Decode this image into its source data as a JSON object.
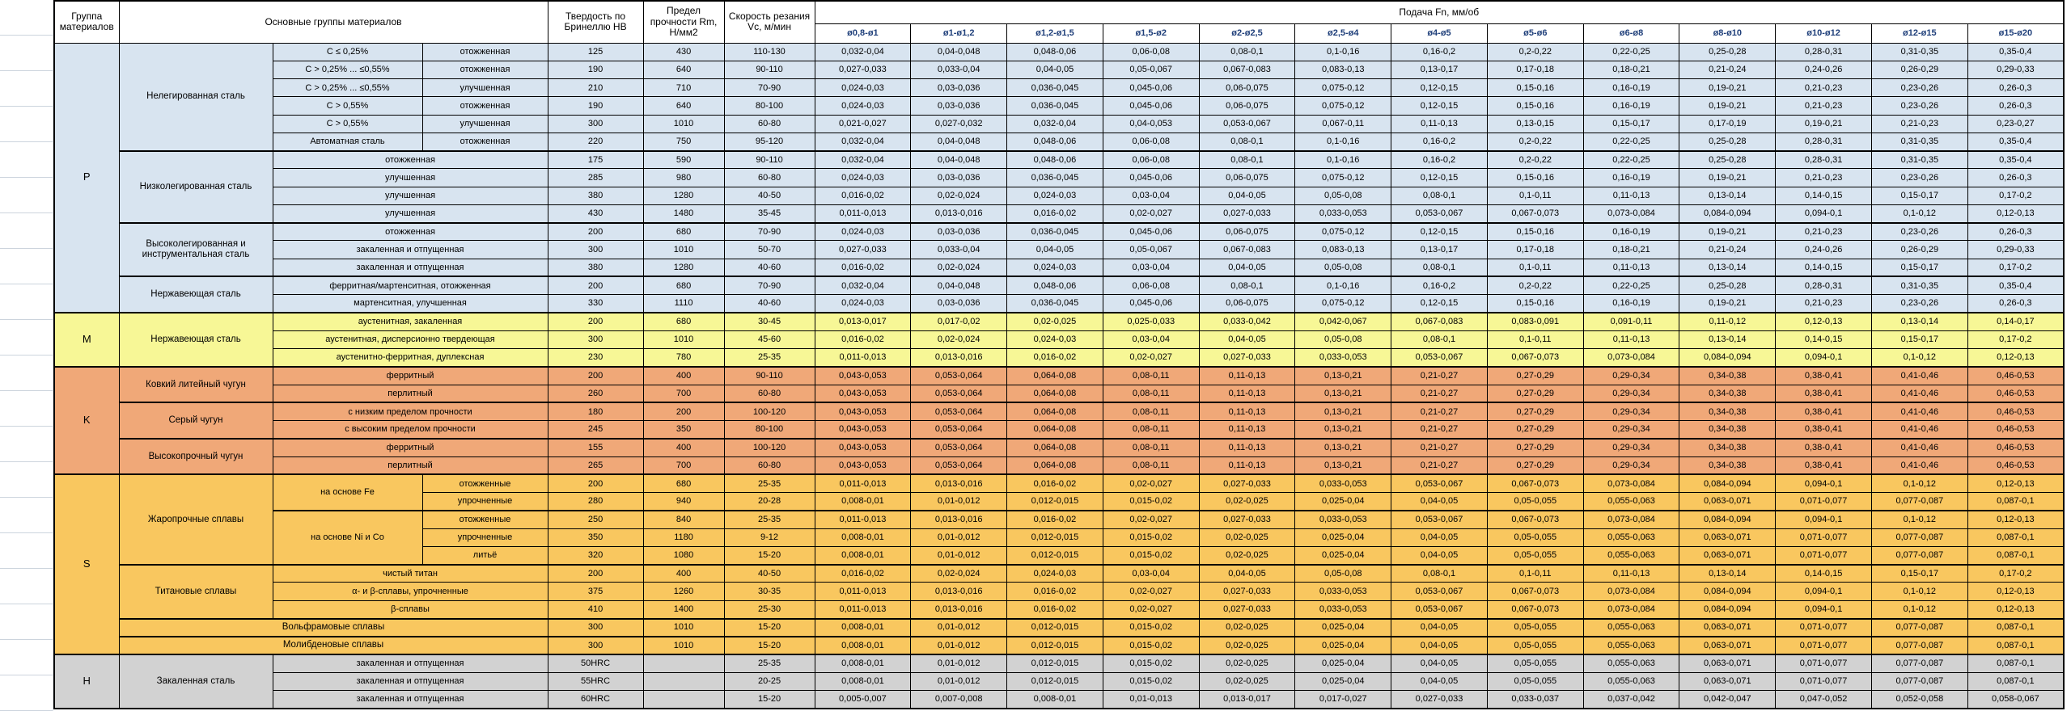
{
  "header": {
    "col_group": "Группа материалов",
    "col_materials": "Основные группы материалов",
    "col_hb": "Твердость по Бринеллю HB",
    "col_rm": "Предел прочности Rm, Н/мм2",
    "col_vc": "Скорость резания Vc, м/мин",
    "col_feed": "Подача Fn, мм/об",
    "diameters": [
      "ø0,8-ø1",
      "ø1-ø1,2",
      "ø1,2-ø1,5",
      "ø1,5-ø2",
      "ø2-ø2,5",
      "ø2,5-ø4",
      "ø4-ø5",
      "ø5-ø6",
      "ø6-ø8",
      "ø8-ø10",
      "ø10-ø12",
      "ø12-ø15",
      "ø15-ø20"
    ]
  },
  "colors": {
    "groups": {
      "P": "#d8e4f0",
      "M": "#f7f796",
      "K": "#f0a878",
      "S": "#f9c75f",
      "H": "#d2d2d2"
    },
    "diameter_header_text": "#1f3f7a",
    "border": "#000000"
  },
  "feed_patterns": {
    "A": [
      "0,032-0,04",
      "0,04-0,048",
      "0,048-0,06",
      "0,06-0,08",
      "0,08-0,1",
      "0,1-0,16",
      "0,16-0,2",
      "0,2-0,22",
      "0,22-0,25",
      "0,25-0,28",
      "0,28-0,31",
      "0,31-0,35",
      "0,35-0,4"
    ],
    "B": [
      "0,027-0,033",
      "0,033-0,04",
      "0,04-0,05",
      "0,05-0,067",
      "0,067-0,083",
      "0,083-0,13",
      "0,13-0,17",
      "0,17-0,18",
      "0,18-0,21",
      "0,21-0,24",
      "0,24-0,26",
      "0,26-0,29",
      "0,29-0,33"
    ],
    "C": [
      "0,024-0,03",
      "0,03-0,036",
      "0,036-0,045",
      "0,045-0,06",
      "0,06-0,075",
      "0,075-0,12",
      "0,12-0,15",
      "0,15-0,16",
      "0,16-0,19",
      "0,19-0,21",
      "0,21-0,23",
      "0,23-0,26",
      "0,26-0,3"
    ],
    "D": [
      "0,021-0,027",
      "0,027-0,032",
      "0,032-0,04",
      "0,04-0,053",
      "0,053-0,067",
      "0,067-0,11",
      "0,11-0,13",
      "0,13-0,15",
      "0,15-0,17",
      "0,17-0,19",
      "0,19-0,21",
      "0,21-0,23",
      "0,23-0,27"
    ],
    "E": [
      "0,016-0,02",
      "0,02-0,024",
      "0,024-0,03",
      "0,03-0,04",
      "0,04-0,05",
      "0,05-0,08",
      "0,08-0,1",
      "0,1-0,11",
      "0,11-0,13",
      "0,13-0,14",
      "0,14-0,15",
      "0,15-0,17",
      "0,17-0,2"
    ],
    "F": [
      "0,011-0,013",
      "0,013-0,016",
      "0,016-0,02",
      "0,02-0,027",
      "0,027-0,033",
      "0,033-0,053",
      "0,053-0,067",
      "0,067-0,073",
      "0,073-0,084",
      "0,084-0,094",
      "0,094-0,1",
      "0,1-0,12",
      "0,12-0,13"
    ],
    "G": [
      "0,013-0,017",
      "0,017-0,02",
      "0,02-0,025",
      "0,025-0,033",
      "0,033-0,042",
      "0,042-0,067",
      "0,067-0,083",
      "0,083-0,091",
      "0,091-0,11",
      "0,11-0,12",
      "0,12-0,13",
      "0,13-0,14",
      "0,14-0,17"
    ],
    "K": [
      "0,043-0,053",
      "0,053-0,064",
      "0,064-0,08",
      "0,08-0,11",
      "0,11-0,13",
      "0,13-0,21",
      "0,21-0,27",
      "0,27-0,29",
      "0,29-0,34",
      "0,34-0,38",
      "0,38-0,41",
      "0,41-0,46",
      "0,46-0,53"
    ],
    "S2": [
      "0,008-0,01",
      "0,01-0,012",
      "0,012-0,015",
      "0,015-0,02",
      "0,02-0,025",
      "0,025-0,04",
      "0,04-0,05",
      "0,05-0,055",
      "0,055-0,063",
      "0,063-0,071",
      "0,071-0,077",
      "0,077-0,087",
      "0,087-0,1"
    ],
    "H3": [
      "0,005-0,007",
      "0,007-0,008",
      "0,008-0,01",
      "0,01-0,013",
      "0,013-0,017",
      "0,017-0,027",
      "0,027-0,033",
      "0,033-0,037",
      "0,037-0,042",
      "0,042-0,047",
      "0,047-0,052",
      "0,052-0,058",
      "0,058-0,067"
    ]
  },
  "rows": [
    {
      "g": "P",
      "feed": "A",
      "hb": "125",
      "rm": "430",
      "vc": "110-130",
      "cells": [
        {
          "t": "P",
          "rs": 15,
          "k": "group"
        },
        {
          "t": "Нелегированная сталь",
          "rs": 6,
          "k": "mat"
        },
        {
          "t": "C ≤ 0,25%",
          "k": "sub"
        },
        {
          "t": "отожженная",
          "k": "state"
        }
      ]
    },
    {
      "g": "P",
      "feed": "B",
      "hb": "190",
      "rm": "640",
      "vc": "90-110",
      "cells": [
        {
          "t": "C > 0,25% ... ≤0,55%",
          "k": "sub"
        },
        {
          "t": "отожженная",
          "k": "state"
        }
      ]
    },
    {
      "g": "P",
      "feed": "C",
      "hb": "210",
      "rm": "710",
      "vc": "70-90",
      "cells": [
        {
          "t": "C > 0,25% ... ≤0,55%",
          "k": "sub"
        },
        {
          "t": "улучшенная",
          "k": "state"
        }
      ]
    },
    {
      "g": "P",
      "feed": "C",
      "hb": "190",
      "rm": "640",
      "vc": "80-100",
      "cells": [
        {
          "t": "C > 0,55%",
          "k": "sub"
        },
        {
          "t": "отожженная",
          "k": "state"
        }
      ]
    },
    {
      "g": "P",
      "feed": "D",
      "hb": "300",
      "rm": "1010",
      "vc": "60-80",
      "cells": [
        {
          "t": "C > 0,55%",
          "k": "sub"
        },
        {
          "t": "улучшенная",
          "k": "state"
        }
      ]
    },
    {
      "g": "P",
      "feed": "A",
      "hb": "220",
      "rm": "750",
      "vc": "95-120",
      "cells": [
        {
          "t": "Автоматная сталь",
          "k": "sub"
        },
        {
          "t": "отожженная",
          "k": "state"
        }
      ]
    },
    {
      "g": "P",
      "feed": "A",
      "thick": true,
      "hb": "175",
      "rm": "590",
      "vc": "90-110",
      "cells": [
        {
          "t": "Низколегированная сталь",
          "rs": 4,
          "k": "mat"
        },
        {
          "t": "отожженная",
          "cs": 2,
          "k": "sub"
        }
      ]
    },
    {
      "g": "P",
      "feed": "C",
      "hb": "285",
      "rm": "980",
      "vc": "60-80",
      "cells": [
        {
          "t": "улучшенная",
          "cs": 2,
          "k": "sub"
        }
      ]
    },
    {
      "g": "P",
      "feed": "E",
      "hb": "380",
      "rm": "1280",
      "vc": "40-50",
      "cells": [
        {
          "t": "улучшенная",
          "cs": 2,
          "k": "sub"
        }
      ]
    },
    {
      "g": "P",
      "feed": "F",
      "hb": "430",
      "rm": "1480",
      "vc": "35-45",
      "cells": [
        {
          "t": "улучшенная",
          "cs": 2,
          "k": "sub"
        }
      ]
    },
    {
      "g": "P",
      "feed": "C",
      "thick": true,
      "hb": "200",
      "rm": "680",
      "vc": "70-90",
      "cells": [
        {
          "t": "Высоколегированная и инструментальная сталь",
          "rs": 3,
          "k": "mat"
        },
        {
          "t": "отожженная",
          "cs": 2,
          "k": "sub"
        }
      ]
    },
    {
      "g": "P",
      "feed": "B",
      "hb": "300",
      "rm": "1010",
      "vc": "50-70",
      "cells": [
        {
          "t": "закаленная и отпущенная",
          "cs": 2,
          "k": "sub"
        }
      ]
    },
    {
      "g": "P",
      "feed": "E",
      "hb": "380",
      "rm": "1280",
      "vc": "40-60",
      "cells": [
        {
          "t": "закаленная и отпущенная",
          "cs": 2,
          "k": "sub"
        }
      ]
    },
    {
      "g": "P",
      "feed": "A",
      "thick": true,
      "hb": "200",
      "rm": "680",
      "vc": "70-90",
      "cells": [
        {
          "t": "Нержавеющая сталь",
          "rs": 2,
          "k": "mat"
        },
        {
          "t": "ферритная/мартенситная, отожженная",
          "cs": 2,
          "k": "sub"
        }
      ]
    },
    {
      "g": "P",
      "feed": "C",
      "hb": "330",
      "rm": "1110",
      "vc": "40-60",
      "cells": [
        {
          "t": "мартенситная, улучшенная",
          "cs": 2,
          "k": "sub"
        }
      ]
    },
    {
      "g": "M",
      "feed": "G",
      "thick": true,
      "hb": "200",
      "rm": "680",
      "vc": "30-45",
      "cells": [
        {
          "t": "M",
          "rs": 3,
          "k": "group"
        },
        {
          "t": "Нержавеющая сталь",
          "rs": 3,
          "k": "mat"
        },
        {
          "t": "аустенитная, закаленная",
          "cs": 2,
          "k": "sub"
        }
      ]
    },
    {
      "g": "M",
      "feed": "E",
      "hb": "300",
      "rm": "1010",
      "vc": "45-60",
      "cells": [
        {
          "t": "аустенитная, дисперсионно твердеющая",
          "cs": 2,
          "k": "sub"
        }
      ]
    },
    {
      "g": "M",
      "feed": "F",
      "hb": "230",
      "rm": "780",
      "vc": "25-35",
      "cells": [
        {
          "t": "аустенитно-ферритная, дуплексная",
          "cs": 2,
          "k": "sub"
        }
      ]
    },
    {
      "g": "K",
      "feed": "K",
      "thick": true,
      "hb": "200",
      "rm": "400",
      "vc": "90-110",
      "cells": [
        {
          "t": "K",
          "rs": 6,
          "k": "group"
        },
        {
          "t": "Ковкий литейный чугун",
          "rs": 2,
          "k": "mat"
        },
        {
          "t": "ферритный",
          "cs": 2,
          "k": "sub"
        }
      ]
    },
    {
      "g": "K",
      "feed": "K",
      "hb": "260",
      "rm": "700",
      "vc": "60-80",
      "cells": [
        {
          "t": "перлитный",
          "cs": 2,
          "k": "sub"
        }
      ]
    },
    {
      "g": "K",
      "feed": "K",
      "thick": true,
      "hb": "180",
      "rm": "200",
      "vc": "100-120",
      "cells": [
        {
          "t": "Серый чугун",
          "rs": 2,
          "k": "mat"
        },
        {
          "t": "с низким пределом прочности",
          "cs": 2,
          "k": "sub"
        }
      ]
    },
    {
      "g": "K",
      "feed": "K",
      "hb": "245",
      "rm": "350",
      "vc": "80-100",
      "cells": [
        {
          "t": "с высоким пределом прочности",
          "cs": 2,
          "k": "sub"
        }
      ]
    },
    {
      "g": "K",
      "feed": "K",
      "thick": true,
      "hb": "155",
      "rm": "400",
      "vc": "100-120",
      "cells": [
        {
          "t": "Высокопрочный чугун",
          "rs": 2,
          "k": "mat"
        },
        {
          "t": "ферритный",
          "cs": 2,
          "k": "sub"
        }
      ]
    },
    {
      "g": "K",
      "feed": "K",
      "hb": "265",
      "rm": "700",
      "vc": "60-80",
      "cells": [
        {
          "t": "перлитный",
          "cs": 2,
          "k": "sub"
        }
      ]
    },
    {
      "g": "S",
      "feed": "F",
      "thick": true,
      "hb": "200",
      "rm": "680",
      "vc": "25-35",
      "cells": [
        {
          "t": "S",
          "rs": 10,
          "k": "group"
        },
        {
          "t": "Жаропрочные сплавы",
          "rs": 5,
          "k": "mat"
        },
        {
          "t": "на основе Fe",
          "rs": 2,
          "k": "sub"
        },
        {
          "t": "отожженные",
          "k": "state"
        }
      ]
    },
    {
      "g": "S",
      "feed": "S2",
      "hb": "280",
      "rm": "940",
      "vc": "20-28",
      "cells": [
        {
          "t": "упрочненные",
          "k": "state"
        }
      ]
    },
    {
      "g": "S",
      "feed": "F",
      "thick": true,
      "hb": "250",
      "rm": "840",
      "vc": "25-35",
      "cells": [
        {
          "t": "на основе Ni и Co",
          "rs": 3,
          "k": "sub"
        },
        {
          "t": "отожженные",
          "k": "state"
        }
      ]
    },
    {
      "g": "S",
      "feed": "S2",
      "hb": "350",
      "rm": "1180",
      "vc": "9-12",
      "cells": [
        {
          "t": "упрочненные",
          "k": "state"
        }
      ]
    },
    {
      "g": "S",
      "feed": "S2",
      "hb": "320",
      "rm": "1080",
      "vc": "15-20",
      "cells": [
        {
          "t": "литьё",
          "k": "state"
        }
      ]
    },
    {
      "g": "S",
      "feed": "E",
      "thick": true,
      "hb": "200",
      "rm": "400",
      "vc": "40-50",
      "cells": [
        {
          "t": "Титановые сплавы",
          "rs": 3,
          "k": "mat"
        },
        {
          "t": "чистый титан",
          "cs": 2,
          "k": "sub"
        }
      ]
    },
    {
      "g": "S",
      "feed": "F",
      "hb": "375",
      "rm": "1260",
      "vc": "30-35",
      "cells": [
        {
          "t": "α- и β-сплавы, упрочненные",
          "cs": 2,
          "k": "sub"
        }
      ]
    },
    {
      "g": "S",
      "feed": "F",
      "hb": "410",
      "rm": "1400",
      "vc": "25-30",
      "cells": [
        {
          "t": "β-сплавы",
          "cs": 2,
          "k": "sub"
        }
      ]
    },
    {
      "g": "S",
      "feed": "S2",
      "thick": true,
      "hb": "300",
      "rm": "1010",
      "vc": "15-20",
      "cells": [
        {
          "t": "Вольфрамовые сплавы",
          "cs": 3,
          "k": "mat"
        }
      ]
    },
    {
      "g": "S",
      "feed": "S2",
      "thick": true,
      "hb": "300",
      "rm": "1010",
      "vc": "15-20",
      "cells": [
        {
          "t": "Молибденовые сплавы",
          "cs": 3,
          "k": "mat"
        }
      ]
    },
    {
      "g": "H",
      "feed": "S2",
      "thick": true,
      "hb": "50HRC",
      "rm": "",
      "vc": "25-35",
      "cells": [
        {
          "t": "H",
          "rs": 3,
          "k": "group"
        },
        {
          "t": "Закаленная сталь",
          "rs": 3,
          "k": "mat"
        },
        {
          "t": "закаленная и отпущенная",
          "cs": 2,
          "k": "sub"
        }
      ]
    },
    {
      "g": "H",
      "feed": "S2",
      "hb": "55HRC",
      "rm": "",
      "vc": "20-25",
      "cells": [
        {
          "t": "закаленная и отпущенная",
          "cs": 2,
          "k": "sub"
        }
      ]
    },
    {
      "g": "H",
      "feed": "H3",
      "hb": "60HRC",
      "rm": "",
      "vc": "15-20",
      "cells": [
        {
          "t": "закаленная и отпущенная",
          "cs": 2,
          "k": "sub"
        }
      ]
    }
  ]
}
